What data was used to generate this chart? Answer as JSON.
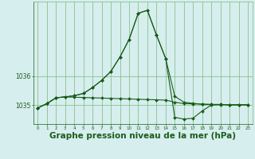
{
  "background_color": "#d6eeee",
  "grid_color": "#7db87d",
  "line_color": "#1a5c1a",
  "xlabel": "Graphe pression niveau de la mer (hPa)",
  "xlabel_fontsize": 7.5,
  "x_ticks": [
    0,
    1,
    2,
    3,
    4,
    5,
    6,
    7,
    8,
    9,
    10,
    11,
    12,
    13,
    14,
    15,
    16,
    17,
    18,
    19,
    20,
    21,
    22,
    23
  ],
  "y_ticks": [
    1035,
    1036
  ],
  "ylim": [
    1034.35,
    1038.55
  ],
  "xlim": [
    -0.5,
    23.5
  ],
  "series_flat": [
    1034.9,
    1035.05,
    1035.25,
    1035.28,
    1035.27,
    1035.26,
    1035.25,
    1035.24,
    1035.23,
    1035.22,
    1035.21,
    1035.2,
    1035.19,
    1035.18,
    1035.17,
    1035.1,
    1035.05,
    1035.04,
    1035.03,
    1035.02,
    1035.02,
    1035.01,
    1035.01,
    1035.01
  ],
  "series_peak": [
    1034.9,
    1035.05,
    1035.25,
    1035.28,
    1035.32,
    1035.4,
    1035.6,
    1035.85,
    1036.15,
    1036.65,
    1037.25,
    1038.15,
    1038.25,
    1037.4,
    1036.6,
    1035.3,
    1035.1,
    1035.06,
    1035.03,
    1035.02,
    1035.02,
    1035.01,
    1035.01,
    1035.01
  ],
  "series_dip": [
    1034.9,
    1035.05,
    1035.25,
    1035.28,
    1035.32,
    1035.4,
    1035.6,
    1035.85,
    1036.15,
    1036.65,
    1037.25,
    1038.15,
    1038.25,
    1037.4,
    1036.6,
    1034.58,
    1034.52,
    1034.55,
    1034.8,
    1035.0,
    1035.01,
    1035.01,
    1035.01,
    1035.01
  ]
}
